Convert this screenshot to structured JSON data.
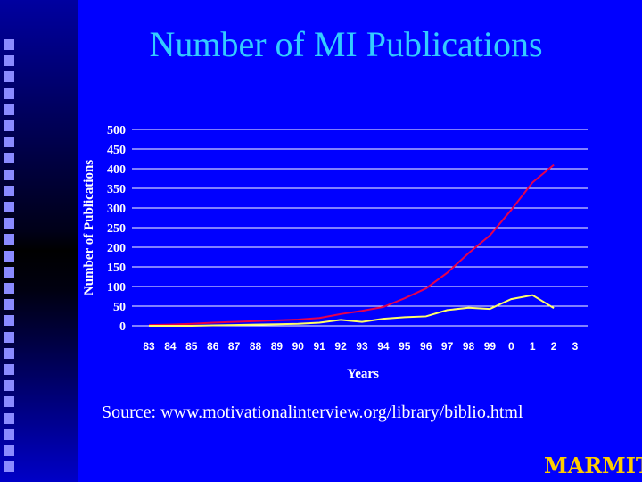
{
  "slide": {
    "title": "Number of MI Publications",
    "source": "Source:  www.motivationalinterview.org/library/biblio.html",
    "logo": "MARMIT"
  },
  "colors": {
    "background": "#0000ff",
    "title": "#33ccff",
    "logo": "#ffcc00",
    "series_red": "#e6004c",
    "series_yellow": "#ffff66",
    "grid": "#ffffff"
  },
  "chart_data": {
    "type": "line",
    "title": "",
    "xlabel": "Years",
    "ylabel": "Number of Publications",
    "categories": [
      "83",
      "84",
      "85",
      "86",
      "87",
      "88",
      "89",
      "90",
      "91",
      "92",
      "93",
      "94",
      "95",
      "96",
      "97",
      "98",
      "99",
      "0",
      "1",
      "2",
      "3"
    ],
    "ylim": [
      0,
      500
    ],
    "yticks": [
      0,
      50,
      100,
      150,
      200,
      250,
      300,
      350,
      400,
      450,
      500
    ],
    "grid": true,
    "series": [
      {
        "color": "#e6004c",
        "values": [
          2,
          3,
          5,
          8,
          10,
          12,
          14,
          16,
          20,
          30,
          38,
          48,
          70,
          95,
          135,
          185,
          230,
          295,
          365,
          410,
          410
        ]
      },
      {
        "color": "#ffff66",
        "values": [
          0,
          0,
          0,
          1,
          2,
          3,
          4,
          5,
          8,
          15,
          10,
          18,
          22,
          24,
          40,
          46,
          43,
          68,
          78,
          45,
          45
        ]
      }
    ],
    "points_plotted": 20
  }
}
